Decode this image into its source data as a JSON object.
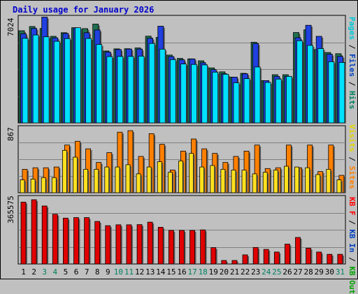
{
  "title": "Daily usage for January 2026",
  "panels": {
    "top": {
      "ymax_label": "7024",
      "legend": [
        {
          "text": "Pages",
          "color": "#00c8d8"
        },
        {
          "text": " / ",
          "color": "#000000"
        },
        {
          "text": "Files",
          "color": "#0040c0"
        },
        {
          "text": " / ",
          "color": "#000000"
        },
        {
          "text": "Hits",
          "color": "#008060"
        }
      ]
    },
    "middle": {
      "ymax_label": "867",
      "legend": [
        {
          "text": "Visits",
          "color": "#e8d800"
        },
        {
          "text": " / ",
          "color": "#000000"
        },
        {
          "text": "Sites",
          "color": "#ff8000"
        }
      ]
    },
    "bottom": {
      "ymax_label": "365575",
      "legend": [
        {
          "text": "KB F",
          "color": "#ff0000"
        },
        {
          "text": " / ",
          "color": "#000000"
        },
        {
          "text": "KB In",
          "color": "#0040c0"
        },
        {
          "text": " / ",
          "color": "#000000"
        },
        {
          "text": "KB Out",
          "color": "#00a000"
        }
      ]
    }
  },
  "colors": {
    "hits": "#207050",
    "files": "#2040e0",
    "pages": "#00e0ff",
    "sites": "#ff8000",
    "visits": "#ffe020",
    "kbf": "#e00000",
    "weekday_label": "#000000",
    "weekend_label": "#008060"
  },
  "chart_data": {
    "type": "bar",
    "x": [
      1,
      2,
      3,
      4,
      5,
      6,
      7,
      8,
      9,
      10,
      11,
      12,
      13,
      14,
      15,
      16,
      17,
      18,
      19,
      20,
      21,
      22,
      23,
      24,
      25,
      26,
      27,
      28,
      29,
      30,
      31
    ],
    "weekend_days": [
      3,
      4,
      10,
      11,
      17,
      18,
      24,
      25,
      31
    ],
    "top": {
      "ylim": [
        0,
        7024
      ],
      "series": [
        {
          "name": "Hits",
          "values": [
            6100,
            6380,
            6250,
            5730,
            5970,
            6300,
            6240,
            6540,
            4760,
            4900,
            4910,
            4960,
            5740,
            5660,
            4490,
            4270,
            4240,
            4110,
            3640,
            3380,
            3030,
            3280,
            5340,
            2800,
            3190,
            3190,
            5980,
            6160,
            4860,
            4660,
            4580
          ]
        },
        {
          "name": "Files",
          "values": [
            5900,
            6250,
            7000,
            5630,
            5920,
            6280,
            5970,
            6150,
            4690,
            4860,
            4890,
            4890,
            5600,
            6400,
            4390,
            4180,
            4230,
            3980,
            3530,
            3250,
            3030,
            3250,
            5250,
            2800,
            3080,
            3080,
            5640,
            6460,
            5730,
            4550,
            4400
          ]
        },
        {
          "name": "Pages",
          "values": [
            5600,
            5820,
            5700,
            5400,
            5580,
            6300,
            5590,
            5190,
            4390,
            4400,
            4400,
            4420,
            5260,
            4880,
            4190,
            3900,
            3870,
            3840,
            3360,
            3220,
            2660,
            2930,
            3700,
            2680,
            2900,
            3080,
            5440,
            5130,
            4920,
            4050,
            4000
          ]
        }
      ]
    },
    "middle": {
      "ylim": [
        0,
        867
      ],
      "series": [
        {
          "name": "Sites",
          "values": [
            310,
            330,
            330,
            340,
            630,
            680,
            580,
            400,
            530,
            800,
            820,
            480,
            780,
            640,
            300,
            550,
            710,
            580,
            520,
            400,
            480,
            550,
            630,
            320,
            330,
            630,
            330,
            630,
            280,
            630,
            230
          ]
        },
        {
          "name": "Visits",
          "values": [
            170,
            180,
            200,
            200,
            560,
            470,
            310,
            310,
            340,
            340,
            370,
            250,
            340,
            410,
            270,
            420,
            520,
            340,
            360,
            310,
            300,
            300,
            250,
            270,
            300,
            350,
            340,
            330,
            240,
            310,
            170
          ]
        }
      ]
    },
    "bottom": {
      "ylim": [
        0,
        365575
      ],
      "series": [
        {
          "name": "KB F",
          "values": [
            352000,
            365575,
            330000,
            283000,
            261000,
            264000,
            264000,
            242000,
            218000,
            223000,
            223000,
            224000,
            238000,
            209000,
            191000,
            191000,
            191000,
            194000,
            93000,
            20000,
            20000,
            52000,
            94000,
            83000,
            68000,
            113000,
            151000,
            90000,
            68000,
            55000,
            55000
          ]
        }
      ]
    }
  }
}
